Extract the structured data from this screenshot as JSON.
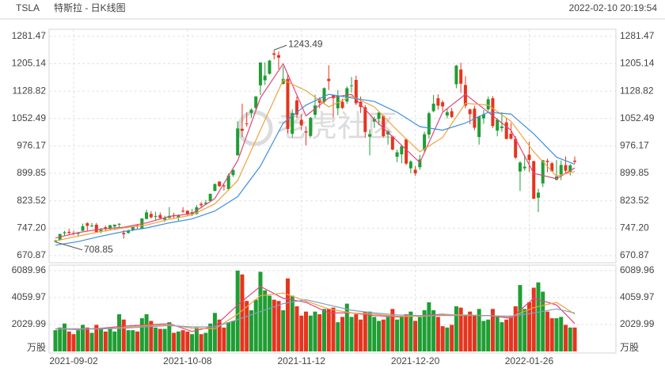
{
  "chart_data": {
    "type": "candlestick",
    "symbol": "TSLA",
    "title": "特斯拉 - 日K线图",
    "timestamp": "2022-02-10 20:19:54",
    "watermark": "老虎社区",
    "up_color": "#1f9e33",
    "down_color": "#e5351e",
    "categories": [
      null,
      null,
      null,
      null,
      "2021-09-02",
      null,
      null,
      null,
      null,
      null,
      null,
      null,
      null,
      null,
      null,
      null,
      null,
      null,
      null,
      null,
      null,
      null,
      null,
      null,
      null,
      null,
      null,
      null,
      null,
      "2021-10-08",
      null,
      null,
      null,
      null,
      null,
      null,
      null,
      null,
      null,
      null,
      null,
      null,
      null,
      null,
      null,
      null,
      null,
      null,
      null,
      null,
      null,
      null,
      null,
      null,
      "2021-11-12",
      null,
      null,
      null,
      null,
      null,
      null,
      null,
      null,
      null,
      null,
      null,
      null,
      null,
      null,
      null,
      null,
      null,
      null,
      null,
      null,
      null,
      null,
      null,
      null,
      "2021-12-20",
      null,
      null,
      null,
      null,
      null,
      null,
      null,
      null,
      null,
      null,
      null,
      null,
      null,
      null,
      null,
      null,
      null,
      null,
      null,
      null,
      null,
      null,
      null,
      null,
      "2022-01-26",
      null,
      null,
      null,
      null,
      null,
      null,
      null,
      null,
      null,
      null
    ],
    "open": [
      710,
      714,
      733,
      737,
      734,
      733,
      740,
      761,
      754,
      757,
      737,
      750,
      745,
      752,
      757,
      734,
      734,
      743,
      755,
      745,
      773,
      787,
      779,
      784,
      771,
      776,
      784,
      777,
      796,
      796,
      787,
      787,
      815,
      815,
      823,
      851,
      877,
      866,
      856,
      895,
      950,
      1024,
      1039,
      1068,
      1082,
      1145,
      1159,
      1177,
      1234,
      1229,
      1149,
      1163,
      1010,
      1103,
      1049,
      1017,
      1004,
      1063,
      1106,
      1099,
      1163,
      1117,
      1081,
      1099,
      1100,
      1144,
      1160,
      1099,
      1084,
      1002,
      1044,
      1052,
      1060,
      1008,
      1002,
      946,
      953,
      995,
      914,
      910,
      917,
      965,
      1008,
      1073,
      1109,
      1098,
      1061,
      1073,
      1148,
      1189,
      1146,
      1078,
      1080,
      1001,
      1053,
      1078,
      1109,
      1019,
      1026,
      1042,
      1010,
      996,
      905,
      914,
      952,
      934,
      832,
      872,
      935,
      928,
      882,
      897,
      923,
      905,
      935
    ],
    "high": [
      715.2,
      732,
      740,
      745,
      740,
      734.7,
      760,
      764,
      762,
      762,
      748,
      754,
      755.9,
      758,
      761,
      742,
      744,
      753,
      758,
      775,
      799,
      795,
      793,
      791,
      782,
      806,
      790,
      786,
      806,
      796.4,
      801,
      812,
      820,
      826,
      843.2,
      872,
      877.9,
      869,
      900,
      910,
      1045,
      1094,
      1070,
      1081,
      1115,
      1209,
      1209,
      1216,
      1243.49,
      1239,
      1198,
      1175,
      1078,
      1114,
      1064,
      1031,
      1057,
      1119,
      1112,
      1139,
      1201,
      1119,
      1132,
      1108,
      1142,
      1168,
      1172,
      1114,
      1090,
      1022,
      1058,
      1072,
      1062,
      1020,
      1005,
      966,
      978,
      996,
      937,
      921,
      951,
      1016,
      1072,
      1118,
      1120,
      1104,
      1080,
      1082,
      1202,
      1208,
      1170,
      1080,
      1088,
      1061,
      1076,
      1114,
      1115,
      1053,
      1070,
      1055,
      1040,
      1004,
      934,
      952,
      988,
      935,
      857,
      937,
      941,
      932,
      937,
      936,
      947,
      926,
      947
    ],
    "low": [
      708.85,
      712,
      726,
      729,
      727,
      724,
      739,
      740,
      750,
      735,
      733,
      738,
      742,
      742,
      750,
      718,
      732,
      739,
      745,
      744,
      772,
      774,
      770,
      772,
      765,
      774,
      775,
      766,
      790,
      780,
      781,
      785,
      804,
      812,
      822,
      850,
      862,
      852,
      855,
      890,
      950,
      1001,
      1030,
      1054,
      1073,
      1118,
      1146,
      1175,
      1217,
      1190,
      1147,
      1011,
      1000,
      1054,
      1020,
      978,
      1002,
      1055,
      1081,
      1092,
      1132,
      1055,
      1062,
      1079,
      1094,
      1125,
      1090,
      1068,
      1000,
      950,
      1026,
      1034,
      1000,
      980,
      964,
      931,
      928,
      923,
      901,
      893,
      910,
      958,
      997,
      1070,
      1077,
      1073,
      1053,
      1054,
      1137,
      1124,
      1081,
      1037,
      1020,
      980,
      1038,
      1073,
      1026,
      1003,
      1016,
      995,
      994,
      940,
      851,
      907,
      904,
      829,
      792,
      862,
      903,
      904,
      880,
      881,
      902,
      894,
      927
    ],
    "close": [
      711.92,
      730.91,
      735.72,
      734.09,
      732.39,
      733.57,
      752.92,
      753.87,
      754.86,
      736.27,
      743.0,
      744.49,
      755.83,
      756.99,
      759.49,
      730.17,
      739.38,
      751.94,
      753.64,
      774.39,
      791.36,
      777.56,
      781.31,
      775.48,
      775.22,
      781.53,
      780.59,
      782.75,
      793.61,
      785.49,
      791.94,
      805.72,
      811.08,
      818.32,
      843.03,
      870.11,
      864.27,
      865.8,
      894.0,
      909.68,
      1024.86,
      1018.43,
      1037.86,
      1077.04,
      1114.0,
      1208.59,
      1172.0,
      1213.86,
      1229.91,
      1222.09,
      1162.94,
      1023.5,
      1067.95,
      1063.51,
      1033.42,
      1013.39,
      1054.73,
      1089.01,
      1096.38,
      1137.06,
      1156.87,
      1109.03,
      1116.0,
      1081.92,
      1136.99,
      1144.76,
      1095.0,
      1084.6,
      1014.97,
      1009.01,
      1051.75,
      1068.96,
      1003.8,
      1017.03,
      966.41,
      958.51,
      975.99,
      926.92,
      932.57,
      899.94,
      938.53,
      1008.87,
      1067.0,
      1093.94,
      1088.47,
      1086.19,
      1070.34,
      1056.78,
      1199.78,
      1149.59,
      1088.12,
      1064.7,
      1026.96,
      1058.12,
      1064.4,
      1106.22,
      1031.56,
      1049.61,
      1030.51,
      995.65,
      996.27,
      943.9,
      930.0,
      918.4,
      937.41,
      829.1,
      846.35,
      936.72,
      931.25,
      905.66,
      891.14,
      923.32,
      907.34,
      922.0,
      932.0
    ],
    "ylim": [
      651,
      1301
    ],
    "yticks": [
      670.87,
      {
        "value": 747.2,
        "label": "747.20"
      },
      823.52,
      899.85,
      976.17,
      1052.49,
      1128.82,
      1205.14,
      1281.47
    ],
    "grid": true,
    "ma_series": [
      {
        "color": "#e2457e",
        "x": [
          0,
          5,
          10,
          15,
          20,
          25,
          30,
          35,
          40,
          45,
          50,
          55,
          60,
          65,
          70,
          75,
          80,
          85,
          90,
          95,
          100,
          105,
          110,
          114
        ],
        "values": [
          720,
          735,
          745,
          750,
          762,
          780,
          788,
          830,
          935,
          1110,
          1205,
          1060,
          1110,
          1120,
          1050,
          990,
          930,
          1070,
          1120,
          1070,
          1020,
          900,
          885,
          915
        ]
      },
      {
        "color": "#f0a23c",
        "x": [
          0,
          5,
          10,
          15,
          20,
          25,
          30,
          35,
          40,
          45,
          50,
          55,
          60,
          65,
          70,
          75,
          80,
          85,
          90,
          95,
          100,
          105,
          110,
          114
        ],
        "values": [
          712,
          725,
          738,
          748,
          756,
          772,
          784,
          815,
          880,
          1020,
          1160,
          1130,
          1085,
          1115,
          1085,
          1020,
          960,
          1000,
          1095,
          1090,
          1045,
          960,
          892,
          905
        ]
      },
      {
        "color": "#3d8fe0",
        "x": [
          0,
          5,
          10,
          15,
          20,
          25,
          30,
          35,
          40,
          45,
          50,
          55,
          60,
          65,
          70,
          75,
          80,
          85,
          90,
          95,
          100,
          105,
          110,
          114
        ],
        "values": [
          700,
          710,
          725,
          738,
          748,
          762,
          773,
          795,
          835,
          920,
          1040,
          1090,
          1120,
          1110,
          1100,
          1070,
          1030,
          1020,
          1040,
          1070,
          1065,
          1010,
          945,
          925
        ]
      }
    ],
    "volume": {
      "unit": "万股",
      "ylim": [
        0,
        6500
      ],
      "yticks": [
        2029.99,
        4059.97,
        6089.96
      ],
      "values": [
        1600,
        1800,
        2100,
        1500,
        1300,
        1600,
        2000,
        1800,
        1400,
        2000,
        1700,
        1500,
        1700,
        1500,
        2800,
        2400,
        1600,
        1600,
        1500,
        2500,
        2800,
        2300,
        1800,
        1700,
        1700,
        2200,
        1400,
        1500,
        1600,
        1500,
        1300,
        1800,
        1300,
        1400,
        2100,
        2900,
        2400,
        1800,
        2200,
        2300,
        6089.96,
        5800,
        3800,
        3100,
        3900,
        6000,
        4600,
        4200,
        3900,
        3800,
        3100,
        5500,
        4200,
        3400,
        2700,
        3000,
        2700,
        3000,
        2800,
        3200,
        3200,
        3300,
        2200,
        2600,
        3600,
        2600,
        2800,
        2400,
        3000,
        3000,
        2600,
        2300,
        2400,
        2600,
        3200,
        2400,
        2600,
        2800,
        3000,
        2300,
        2600,
        3100,
        3700,
        3100,
        2600,
        1900,
        1800,
        2000,
        3400,
        3300,
        2700,
        3000,
        2700,
        3200,
        2300,
        2400,
        3200,
        2700,
        2200,
        2400,
        2700,
        3400,
        5000,
        3200,
        3700,
        4800,
        5200,
        4500,
        3000,
        2500,
        2500,
        2600,
        2000,
        1800,
        1800
      ],
      "ma_series": [
        {
          "color": "#e2457e",
          "x": [
            0,
            5,
            10,
            15,
            20,
            25,
            30,
            35,
            40,
            45,
            50,
            55,
            60,
            65,
            70,
            75,
            80,
            85,
            90,
            95,
            100,
            105,
            110,
            114
          ],
          "values": [
            1700,
            1650,
            1750,
            1900,
            2000,
            2100,
            1500,
            1900,
            3500,
            4900,
            4000,
            3700,
            2900,
            2900,
            2700,
            2600,
            2700,
            2800,
            2700,
            2700,
            2500,
            4000,
            3500,
            2100
          ]
        },
        {
          "color": "#f0a23c",
          "x": [
            0,
            5,
            10,
            15,
            20,
            25,
            30,
            35,
            40,
            45,
            50,
            55,
            60,
            65,
            70,
            75,
            80,
            85,
            90,
            95,
            100,
            105,
            110,
            114
          ],
          "values": [
            1700,
            1700,
            1700,
            1800,
            1950,
            2000,
            1750,
            1700,
            2800,
            4200,
            4400,
            3800,
            3200,
            2900,
            2800,
            2650,
            2650,
            2750,
            2750,
            2700,
            2600,
            3300,
            3700,
            2800
          ]
        },
        {
          "color": "#7fa0c0",
          "x": [
            0,
            5,
            10,
            15,
            20,
            25,
            30,
            35,
            40,
            45,
            50,
            55,
            60,
            65,
            70,
            75,
            80,
            85,
            90,
            95,
            100,
            105,
            110,
            114
          ],
          "values": [
            1700,
            1700,
            1700,
            1750,
            1850,
            1950,
            1850,
            1850,
            2400,
            3000,
            3600,
            3900,
            3500,
            3100,
            2900,
            2750,
            2700,
            2700,
            2700,
            2700,
            2650,
            2900,
            3200,
            2900
          ]
        }
      ]
    }
  }
}
